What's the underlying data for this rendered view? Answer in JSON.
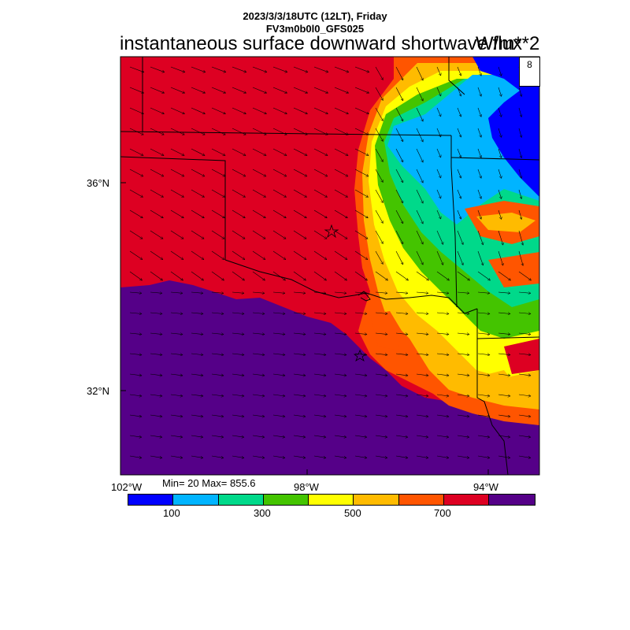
{
  "header": {
    "line1": "2023/3/3/18UTC (12LT), Friday",
    "line2": "FV3m0b0l0_GFS025",
    "title": "instantaneous surface downward shortwave flux",
    "units": "W/m**2"
  },
  "map": {
    "lat_labels": [
      "36°N",
      "32°N"
    ],
    "lon_labels": [
      "102°W",
      "98°W",
      "94°W"
    ],
    "wind_reference": "8",
    "stats": "Min= 20 Max= 855.6"
  },
  "colorbar": {
    "colors": [
      "#0000ff",
      "#00b4ff",
      "#00d98a",
      "#44c400",
      "#ffff00",
      "#ffbb00",
      "#ff5500",
      "#dd0022",
      "#550088"
    ],
    "labels": [
      "100",
      "300",
      "500",
      "700"
    ]
  }
}
